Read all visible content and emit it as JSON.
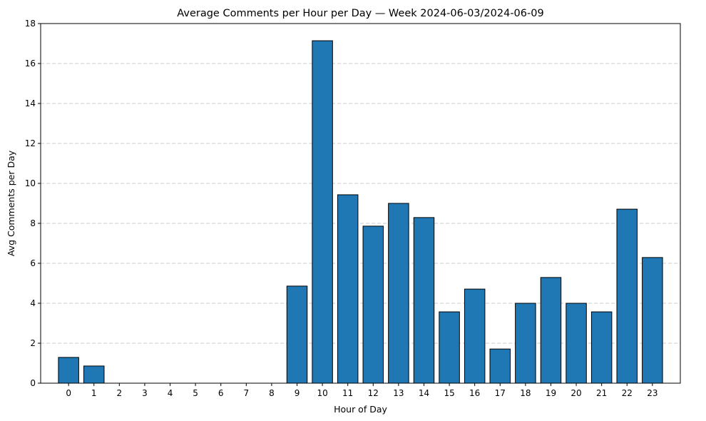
{
  "chart_data": {
    "type": "bar",
    "title": "Average Comments per Hour per Day — Week 2024-06-03/2024-06-09",
    "xlabel": "Hour of Day",
    "ylabel": "Avg Comments per Day",
    "categories": [
      "0",
      "1",
      "2",
      "3",
      "4",
      "5",
      "6",
      "7",
      "8",
      "9",
      "10",
      "11",
      "12",
      "13",
      "14",
      "15",
      "16",
      "17",
      "18",
      "19",
      "20",
      "21",
      "22",
      "23"
    ],
    "values": [
      1.29,
      0.86,
      0,
      0,
      0,
      0,
      0,
      0,
      0,
      4.86,
      17.14,
      9.43,
      7.86,
      9.0,
      8.29,
      3.57,
      4.71,
      1.71,
      4.0,
      5.29,
      4.0,
      3.57,
      8.71,
      6.29
    ],
    "ylim": [
      0,
      18
    ],
    "yticks": [
      0,
      2,
      4,
      6,
      8,
      10,
      12,
      14,
      16,
      18
    ],
    "grid": "y-dashed",
    "bar_color": "#1f77b4",
    "edge_color": "#000000",
    "grid_color": "#c8c8c8"
  }
}
